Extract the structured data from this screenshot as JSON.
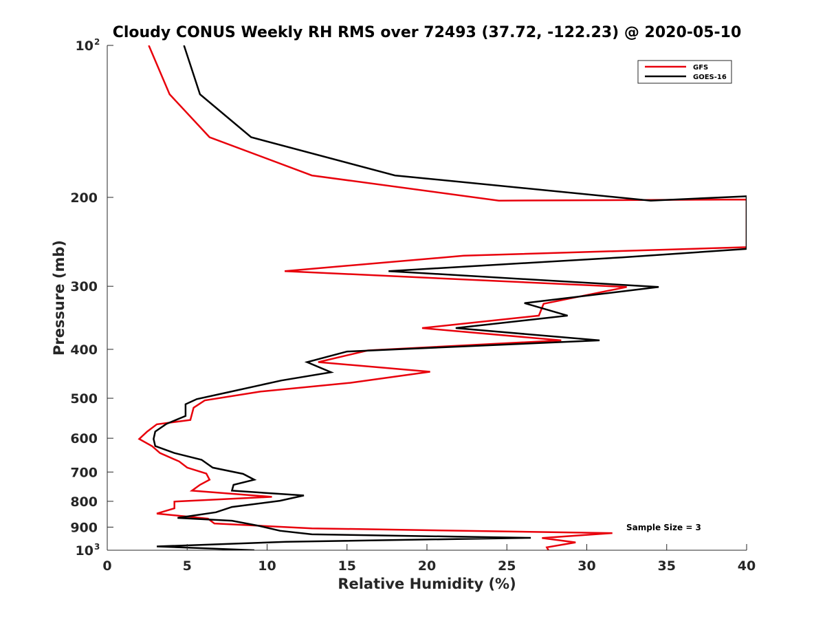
{
  "chart_data": {
    "type": "line",
    "title": "Cloudy CONUS Weekly RH RMS over 72493 (37.72, -122.23) @ 2020-05-10",
    "xlabel": "Relative Humidity (%)",
    "ylabel": "Pressure (mb)",
    "xlim": [
      0,
      40
    ],
    "ylim": [
      100,
      1000
    ],
    "y_scale": "log",
    "y_reversed": true,
    "grid": false,
    "legend_position": "top-right",
    "x_ticks": [
      "0",
      "5",
      "10",
      "15",
      "20",
      "25",
      "30",
      "35",
      "40"
    ],
    "y_ticks": [
      {
        "base": "10",
        "exp": "2",
        "value": 100
      },
      {
        "label": "200",
        "value": 200
      },
      {
        "label": "300",
        "value": 300
      },
      {
        "label": "400",
        "value": 400
      },
      {
        "label": "500",
        "value": 500
      },
      {
        "label": "600",
        "value": 600
      },
      {
        "label": "700",
        "value": 700
      },
      {
        "label": "800",
        "value": 800
      },
      {
        "label": "900",
        "value": 900
      },
      {
        "base": "10",
        "exp": "3",
        "value": 1000
      }
    ],
    "annotation": "Sample Size = 3",
    "series": [
      {
        "name": "GFS",
        "color": "#e8000b",
        "points": [
          [
            2.6,
            100
          ],
          [
            3.9,
            125
          ],
          [
            6.4,
            152
          ],
          [
            12.8,
            181
          ],
          [
            24.5,
            203
          ],
          [
            40,
            202
          ],
          [
            40,
            251
          ],
          [
            22.3,
            261
          ],
          [
            11.1,
            280
          ],
          [
            32.5,
            301
          ],
          [
            27.3,
            325
          ],
          [
            27.0,
            343
          ],
          [
            19.7,
            363
          ],
          [
            28.4,
            384
          ],
          [
            16.3,
            402
          ],
          [
            13.2,
            424
          ],
          [
            20.2,
            443
          ],
          [
            15.2,
            466
          ],
          [
            9.6,
            485
          ],
          [
            6.1,
            505
          ],
          [
            5.4,
            522
          ],
          [
            5.2,
            552
          ],
          [
            3.1,
            563
          ],
          [
            2.5,
            582
          ],
          [
            2.0,
            602
          ],
          [
            2.8,
            622
          ],
          [
            3.3,
            642
          ],
          [
            4.5,
            667
          ],
          [
            5.0,
            686
          ],
          [
            6.2,
            705
          ],
          [
            6.4,
            725
          ],
          [
            5.8,
            742
          ],
          [
            5.3,
            762
          ],
          [
            10.3,
            784
          ],
          [
            4.2,
            801
          ],
          [
            4.2,
            826
          ],
          [
            3.1,
            846
          ],
          [
            6.3,
            866
          ],
          [
            6.7,
            885
          ],
          [
            12.8,
            905
          ],
          [
            31.6,
            925
          ],
          [
            27.2,
            946
          ],
          [
            29.3,
            965
          ],
          [
            27.5,
            987
          ],
          [
            27.6,
            1000
          ]
        ]
      },
      {
        "name": "GOES-16",
        "color": "#000000",
        "points": [
          [
            4.8,
            100
          ],
          [
            5.8,
            125
          ],
          [
            9.0,
            152
          ],
          [
            18.0,
            181
          ],
          [
            34.0,
            203
          ],
          [
            40,
            199
          ],
          [
            40,
            253
          ],
          [
            32.2,
            263
          ],
          [
            17.6,
            280
          ],
          [
            34.5,
            301
          ],
          [
            26.1,
            324
          ],
          [
            28.8,
            343
          ],
          [
            21.8,
            363
          ],
          [
            30.8,
            384
          ],
          [
            15.0,
            404
          ],
          [
            12.5,
            424
          ],
          [
            14.0,
            444
          ],
          [
            10.9,
            461
          ],
          [
            7.5,
            487
          ],
          [
            5.6,
            502
          ],
          [
            4.9,
            514
          ],
          [
            4.9,
            542
          ],
          [
            3.7,
            562
          ],
          [
            3.0,
            582
          ],
          [
            2.9,
            602
          ],
          [
            3.0,
            622
          ],
          [
            4.2,
            642
          ],
          [
            5.9,
            662
          ],
          [
            6.6,
            686
          ],
          [
            8.5,
            706
          ],
          [
            9.2,
            725
          ],
          [
            7.9,
            742
          ],
          [
            7.8,
            762
          ],
          [
            12.3,
            779
          ],
          [
            10.8,
            798
          ],
          [
            7.8,
            821
          ],
          [
            6.8,
            841
          ],
          [
            4.4,
            863
          ],
          [
            7.8,
            874
          ],
          [
            9.5,
            895
          ],
          [
            10.8,
            915
          ],
          [
            12.8,
            930
          ],
          [
            26.5,
            945
          ],
          [
            11.2,
            962
          ],
          [
            3.1,
            983
          ],
          [
            9.2,
            1000
          ]
        ]
      }
    ]
  }
}
